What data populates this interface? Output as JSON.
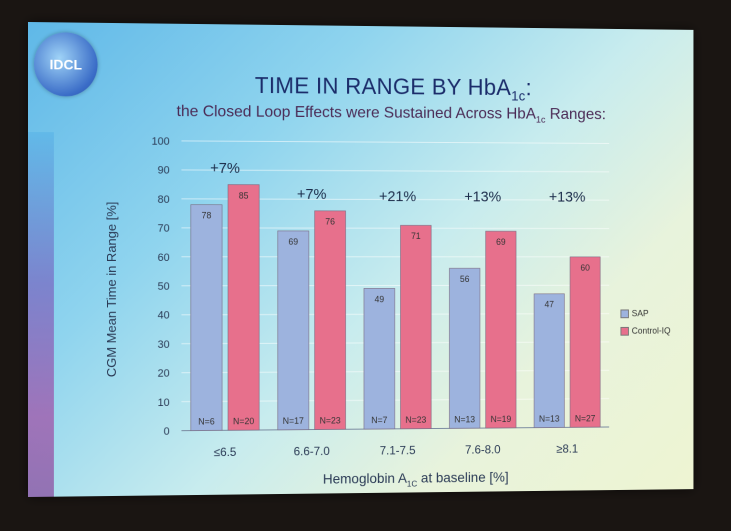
{
  "slide": {
    "logo_text": "IDCL",
    "title": "TIME IN RANGE BY HbA",
    "title_sub": "1c",
    "title_suffix": ":",
    "subtitle": "the Closed Loop Effects were Sustained Across HbA",
    "subtitle_sub": "1c",
    "subtitle_suffix": " Ranges:"
  },
  "chart_data": {
    "type": "bar",
    "title": "",
    "ylabel": "CGM Mean Time in Range [%]",
    "xlabel": "Hemoglobin A",
    "xlabel_sub": "1C",
    "xlabel_suffix": " at baseline [%]",
    "ylim": [
      0,
      100
    ],
    "yticks": [
      0,
      10,
      20,
      30,
      40,
      50,
      60,
      70,
      80,
      90,
      100
    ],
    "categories": [
      "≤6.5",
      "6.6-7.0",
      "7.1-7.5",
      "7.6-8.0",
      "≥8.1"
    ],
    "series": [
      {
        "name": "SAP",
        "values": [
          78,
          69,
          49,
          56,
          47
        ],
        "n": [
          "N=6",
          "N=17",
          "N=7",
          "N=13",
          "N=13"
        ],
        "color": "#9db3de"
      },
      {
        "name": "Control-IQ",
        "values": [
          85,
          76,
          71,
          69,
          60
        ],
        "n": [
          "N=20",
          "N=23",
          "N=23",
          "N=19",
          "N=27"
        ],
        "color": "#e7708c"
      }
    ],
    "differences": [
      "+7%",
      "+7%",
      "+21%",
      "+13%",
      "+13%"
    ],
    "legend_position": "right"
  }
}
